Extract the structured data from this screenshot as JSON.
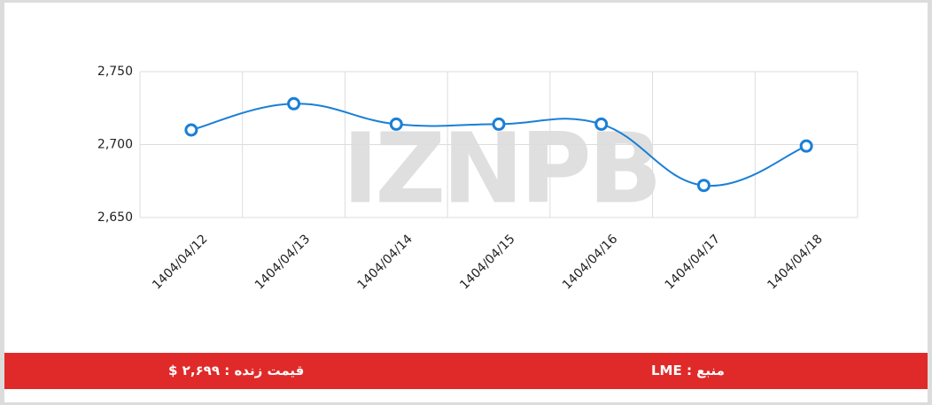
{
  "chart_data": {
    "type": "line",
    "categories": [
      "1404/04/12",
      "1404/04/13",
      "1404/04/14",
      "1404/04/15",
      "1404/04/16",
      "1404/04/17",
      "1404/04/18"
    ],
    "series": [
      {
        "name": "LME",
        "color": "#1a7fd6",
        "values": [
          2710,
          2728,
          2714,
          2714,
          2714,
          2672,
          2699
        ]
      }
    ],
    "ylim": [
      2650,
      2750
    ],
    "yticks": [
      {
        "value": 2650,
        "label": "2,650"
      },
      {
        "value": 2700,
        "label": "2,700"
      },
      {
        "value": 2750,
        "label": "2,750"
      }
    ],
    "grid": true
  },
  "watermark": "IZNPB",
  "footer": {
    "price": "قیمت زنده : ۲,۶۹۹ $",
    "source": "منبع : LME"
  }
}
